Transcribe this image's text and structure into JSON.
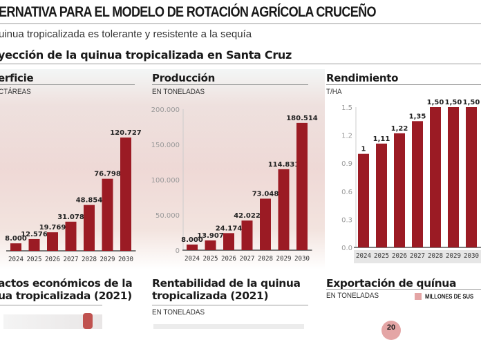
{
  "header": {
    "title": "ERNATIVA PARA EL MODELO DE ROTACIÓN AGRÍCOLA CRUCEÑO",
    "subtitle": "uinua tropicalizada es tolerante y resistente a la sequía",
    "section": "yección de la quinua tropicalizada en Santa Cruz"
  },
  "colors": {
    "bar": "#9b1b24",
    "legend": "#e4a5a5"
  },
  "chart_data": [
    {
      "type": "bar",
      "title": "erficie",
      "unit": "CTÁREAS",
      "categories": [
        "2024",
        "2025",
        "2026",
        "2027",
        "2028",
        "2029",
        "2030"
      ],
      "values": [
        8000,
        12576,
        19769,
        31078,
        48854,
        76798,
        120727
      ],
      "labels": [
        "8.000",
        "12.576",
        "19.769",
        "31.078",
        "48.854",
        "76.798",
        "120.727"
      ]
    },
    {
      "type": "bar",
      "title": "Producción",
      "unit": "EN TONELADAS",
      "categories": [
        "2024",
        "2025",
        "2026",
        "2027",
        "2028",
        "2029",
        "2030"
      ],
      "values": [
        8000,
        13907,
        24174,
        42022,
        73048,
        114831,
        180514
      ],
      "labels": [
        "8.000",
        "13.907",
        "24.174",
        "42.022",
        "73.048",
        "114.831",
        "180.514"
      ],
      "ylim": [
        0,
        200000
      ],
      "yticks": [
        "0",
        "50.000",
        "100.000",
        "150.000",
        "200.000"
      ]
    },
    {
      "type": "bar",
      "title": "Rendimiento",
      "unit": "T/HA",
      "categories": [
        "2024",
        "2025",
        "2026",
        "2027",
        "2028",
        "2029",
        "2030"
      ],
      "values": [
        1,
        1.11,
        1.22,
        1.35,
        1.5,
        1.5,
        1.5
      ],
      "labels": [
        "1",
        "1,11",
        "1,22",
        "1,35",
        "1,50",
        "1,50",
        "1,50"
      ],
      "ylim": [
        0,
        1.5
      ],
      "yticks": [
        "0.0",
        "0.3",
        "0.6",
        "0.9",
        "1.2",
        "1.5"
      ]
    }
  ],
  "bottom": {
    "impactos": {
      "line1": "actos económicos de la",
      "line2": "ua tropicalizada (2021)"
    },
    "rentabilidad": {
      "line1": "Rentabilidad de la quinua",
      "line2": "tropicalizada (2021)",
      "unit": "EN TONELADAS"
    },
    "exportacion": {
      "title": "Exportación de quínua",
      "unit": "EN TONELADAS",
      "legend": "MILLONES DE SUS",
      "bubble": "20"
    }
  }
}
